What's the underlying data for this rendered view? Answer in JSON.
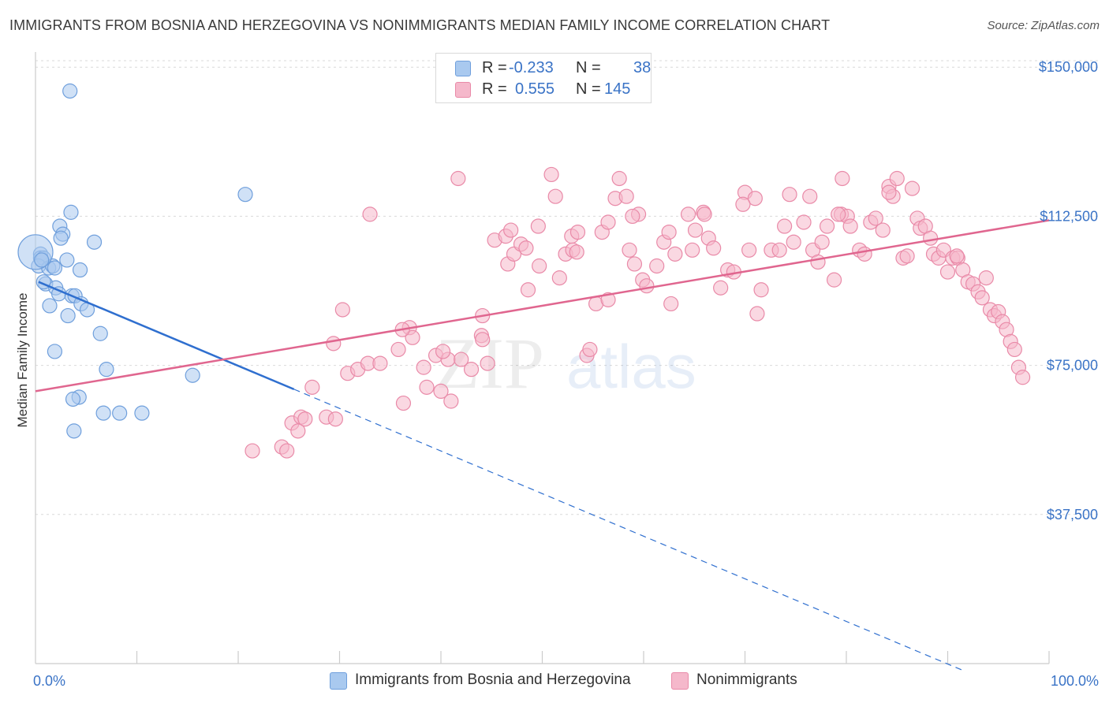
{
  "title": "IMMIGRANTS FROM BOSNIA AND HERZEGOVINA VS NONIMMIGRANTS MEDIAN FAMILY INCOME CORRELATION CHART",
  "source": "Source: ZipAtlas.com",
  "watermark": {
    "zip": "ZIP",
    "atlas": "atlas"
  },
  "colors": {
    "blue_fill": "#a9c9ef",
    "blue_stroke": "#6f9fdc",
    "blue_line": "#2f6fcf",
    "pink_fill": "#f5b8cb",
    "pink_stroke": "#e98aa8",
    "pink_line": "#e0668f",
    "axis_label": "#3a73c6",
    "grid": "#d9d9d9"
  },
  "legend_top": {
    "rows": [
      {
        "r_label": "R =",
        "r_value": "-0.233",
        "n_label": "N =",
        "n_value": "38",
        "series": "blue"
      },
      {
        "r_label": "R =",
        "r_value": "0.555",
        "n_label": "N =",
        "n_value": "145",
        "series": "pink"
      }
    ]
  },
  "legend_bottom": [
    {
      "label": "Immigrants from Bosnia and Herzegovina",
      "series": "blue"
    },
    {
      "label": "Nonimmigrants",
      "series": "pink"
    }
  ],
  "chart_data": {
    "type": "scatter",
    "xlabel": "",
    "ylabel": "Median Family Income",
    "xlim": [
      0,
      100
    ],
    "ylim": [
      0,
      155000
    ],
    "x_tick_labels": [
      {
        "value": 0,
        "label": "0.0%"
      },
      {
        "value": 100,
        "label": "100.0%"
      }
    ],
    "y_ticks": [
      {
        "value": 37500,
        "label": "$37,500"
      },
      {
        "value": 75000,
        "label": "$75,000"
      },
      {
        "value": 112500,
        "label": "$112,500"
      },
      {
        "value": 150000,
        "label": "$150,000"
      }
    ],
    "series": [
      {
        "name": "Immigrants from Bosnia and Herzegovina",
        "color": "blue",
        "R": -0.233,
        "N": 38,
        "trend": {
          "x0": 0.3,
          "y0": 96000,
          "x1": 25.5,
          "y1": 69000,
          "dash_to_x": 91.5
        },
        "points": [
          [
            3.4,
            144000
          ],
          [
            20.7,
            118000
          ],
          [
            3.5,
            113500
          ],
          [
            2.4,
            110000
          ],
          [
            2.7,
            108000
          ],
          [
            2.5,
            107000
          ],
          [
            5.8,
            106000
          ],
          [
            0.5,
            103000
          ],
          [
            0.5,
            102000
          ],
          [
            0.8,
            102000
          ],
          [
            3.1,
            101500
          ],
          [
            0.3,
            100000
          ],
          [
            1.3,
            99500
          ],
          [
            1.7,
            100000
          ],
          [
            1.9,
            99500
          ],
          [
            4.4,
            99000
          ],
          [
            1.0,
            95500
          ],
          [
            0.8,
            96000
          ],
          [
            2.0,
            94500
          ],
          [
            2.3,
            93000
          ],
          [
            3.6,
            92500
          ],
          [
            3.9,
            92500
          ],
          [
            1.4,
            90000
          ],
          [
            4.5,
            90500
          ],
          [
            5.1,
            89000
          ],
          [
            3.2,
            87500
          ],
          [
            6.4,
            83000
          ],
          [
            1.9,
            78500
          ],
          [
            7.0,
            74000
          ],
          [
            15.5,
            72500
          ],
          [
            4.3,
            67000
          ],
          [
            3.7,
            66500
          ],
          [
            6.7,
            63000
          ],
          [
            8.3,
            63000
          ],
          [
            10.5,
            63000
          ],
          [
            3.8,
            58500
          ],
          [
            0.0,
            103500
          ],
          [
            0.6,
            101500
          ]
        ],
        "sizes": [
          0,
          0,
          0,
          0,
          0,
          0,
          0,
          0,
          0,
          0,
          0,
          0,
          0,
          0,
          0,
          0,
          0,
          0,
          0,
          0,
          0,
          0,
          0,
          0,
          0,
          0,
          0,
          0,
          0,
          0,
          0,
          0,
          0,
          0,
          0,
          0,
          1,
          0
        ]
      },
      {
        "name": "Nonimmigrants",
        "color": "pink",
        "R": 0.555,
        "N": 145,
        "trend": {
          "x0": 0.0,
          "y0": 68500,
          "x1": 100.0,
          "y1": 111500
        },
        "points": [
          [
            21.4,
            53500
          ],
          [
            24.3,
            54500
          ],
          [
            24.8,
            53500
          ],
          [
            25.3,
            60500
          ],
          [
            25.9,
            58500
          ],
          [
            26.2,
            62000
          ],
          [
            26.6,
            61500
          ],
          [
            27.3,
            69500
          ],
          [
            28.7,
            62000
          ],
          [
            29.6,
            61500
          ],
          [
            29.4,
            80500
          ],
          [
            30.3,
            89000
          ],
          [
            30.8,
            73000
          ],
          [
            31.8,
            74000
          ],
          [
            32.8,
            75500
          ],
          [
            33.0,
            113000
          ],
          [
            34.0,
            75500
          ],
          [
            35.8,
            79000
          ],
          [
            36.3,
            65500
          ],
          [
            36.9,
            84500
          ],
          [
            37.2,
            82000
          ],
          [
            38.3,
            74500
          ],
          [
            38.6,
            69500
          ],
          [
            39.5,
            77500
          ],
          [
            40.0,
            68500
          ],
          [
            40.7,
            76500
          ],
          [
            41.0,
            66000
          ],
          [
            41.7,
            122000
          ],
          [
            42.0,
            76500
          ],
          [
            43.0,
            74000
          ],
          [
            44.0,
            82500
          ],
          [
            44.1,
            81500
          ],
          [
            44.6,
            75500
          ],
          [
            45.3,
            106500
          ],
          [
            46.4,
            107500
          ],
          [
            46.6,
            100500
          ],
          [
            47.2,
            103000
          ],
          [
            47.9,
            105500
          ],
          [
            48.4,
            104500
          ],
          [
            48.6,
            94000
          ],
          [
            49.7,
            100000
          ],
          [
            50.9,
            123000
          ],
          [
            51.3,
            117500
          ],
          [
            51.7,
            97000
          ],
          [
            52.3,
            103000
          ],
          [
            52.9,
            107500
          ],
          [
            53.0,
            104000
          ],
          [
            53.4,
            103500
          ],
          [
            54.4,
            77500
          ],
          [
            54.7,
            79000
          ],
          [
            55.3,
            90500
          ],
          [
            55.9,
            108500
          ],
          [
            56.5,
            91500
          ],
          [
            56.5,
            111000
          ],
          [
            57.2,
            117000
          ],
          [
            57.6,
            122000
          ],
          [
            58.3,
            117500
          ],
          [
            58.6,
            104000
          ],
          [
            59.1,
            100500
          ],
          [
            59.5,
            113000
          ],
          [
            59.9,
            96500
          ],
          [
            60.3,
            95000
          ],
          [
            61.3,
            100000
          ],
          [
            62.0,
            106000
          ],
          [
            62.7,
            90500
          ],
          [
            63.1,
            103000
          ],
          [
            64.4,
            113000
          ],
          [
            64.8,
            104000
          ],
          [
            65.1,
            109000
          ],
          [
            65.9,
            113500
          ],
          [
            66.4,
            107000
          ],
          [
            66.9,
            104500
          ],
          [
            67.6,
            94500
          ],
          [
            68.3,
            99000
          ],
          [
            68.9,
            98500
          ],
          [
            70.0,
            118500
          ],
          [
            70.4,
            104000
          ],
          [
            71.0,
            117000
          ],
          [
            71.2,
            88000
          ],
          [
            71.6,
            94000
          ],
          [
            72.6,
            104000
          ],
          [
            73.4,
            104000
          ],
          [
            73.9,
            110000
          ],
          [
            74.4,
            118000
          ],
          [
            74.8,
            106000
          ],
          [
            75.8,
            111000
          ],
          [
            76.4,
            117500
          ],
          [
            76.7,
            104000
          ],
          [
            77.2,
            101000
          ],
          [
            77.6,
            106000
          ],
          [
            78.1,
            110000
          ],
          [
            78.8,
            96500
          ],
          [
            79.5,
            113000
          ],
          [
            79.6,
            122000
          ],
          [
            80.1,
            112500
          ],
          [
            80.4,
            110000
          ],
          [
            81.3,
            104000
          ],
          [
            81.8,
            103000
          ],
          [
            82.4,
            111000
          ],
          [
            82.9,
            112000
          ],
          [
            83.6,
            109000
          ],
          [
            84.2,
            120000
          ],
          [
            84.6,
            117500
          ],
          [
            85.0,
            122000
          ],
          [
            85.6,
            102000
          ],
          [
            86.0,
            102500
          ],
          [
            86.5,
            119500
          ],
          [
            87.0,
            112000
          ],
          [
            87.3,
            109500
          ],
          [
            87.8,
            110000
          ],
          [
            88.3,
            107000
          ],
          [
            88.6,
            103000
          ],
          [
            89.1,
            102000
          ],
          [
            89.6,
            104000
          ],
          [
            90.0,
            98500
          ],
          [
            90.5,
            102000
          ],
          [
            91.0,
            102000
          ],
          [
            91.5,
            99000
          ],
          [
            92.0,
            96000
          ],
          [
            92.5,
            95500
          ],
          [
            93.0,
            93500
          ],
          [
            93.4,
            92000
          ],
          [
            93.8,
            97000
          ],
          [
            94.2,
            89000
          ],
          [
            94.6,
            87500
          ],
          [
            95.0,
            88500
          ],
          [
            95.4,
            86000
          ],
          [
            95.8,
            84000
          ],
          [
            96.2,
            81000
          ],
          [
            96.6,
            79000
          ],
          [
            97.0,
            74500
          ],
          [
            97.4,
            72000
          ],
          [
            90.9,
            102500
          ],
          [
            84.2,
            118500
          ],
          [
            79.2,
            113000
          ],
          [
            69.8,
            115500
          ],
          [
            66.0,
            113000
          ],
          [
            62.5,
            108500
          ],
          [
            58.9,
            112500
          ],
          [
            53.5,
            108500
          ],
          [
            46.9,
            109000
          ],
          [
            36.2,
            84000
          ],
          [
            40.2,
            78500
          ],
          [
            44.1,
            87500
          ],
          [
            49.6,
            110000
          ]
        ]
      }
    ]
  }
}
